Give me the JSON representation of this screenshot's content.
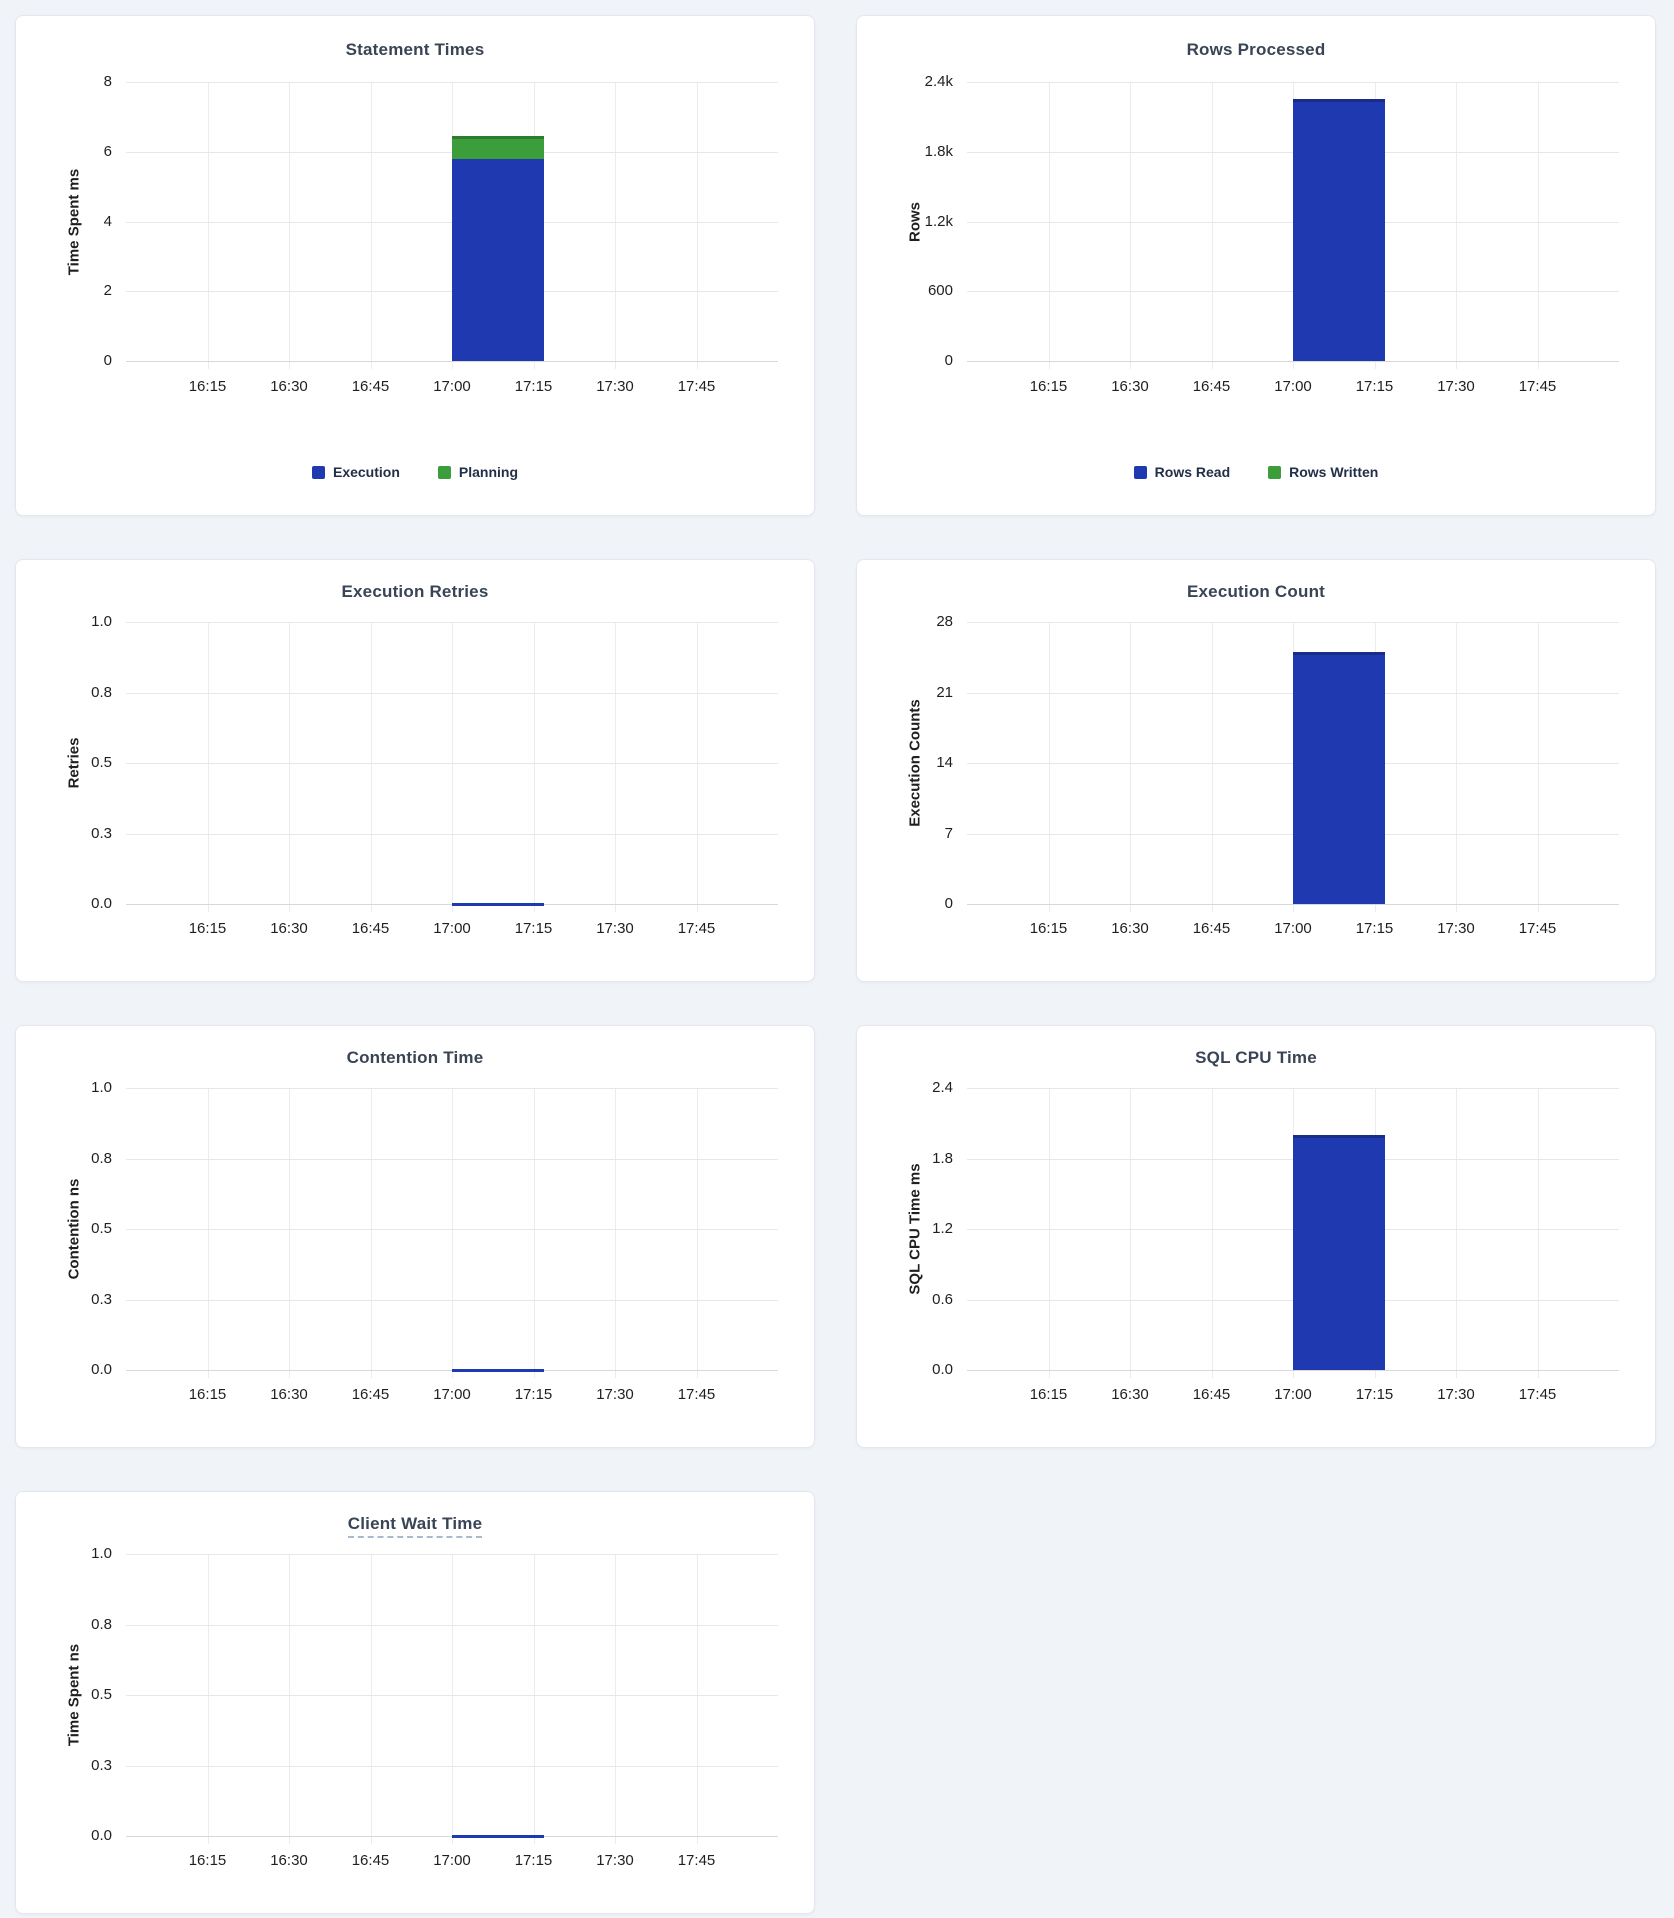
{
  "page": {
    "background_color": "#f0f4f8",
    "card_background_color": "#ffffff",
    "title_color": "#394455",
    "axis_text_color": "#1f1f1f",
    "legend_text_color": "#222f49",
    "gridline_color": "#e8e8e8"
  },
  "x_axis": {
    "range_start": "16:00",
    "range_end": "18:00",
    "tick_labels": [
      "16:15",
      "16:30",
      "16:45",
      "17:00",
      "17:15",
      "17:30",
      "17:45"
    ]
  },
  "chart_data": [
    {
      "id": "statement-times",
      "type": "bar",
      "title": "Statement Times",
      "title_tooltip_underline": false,
      "ylabel": "Time Spent ms",
      "y_ticks": [
        "0",
        "2",
        "4",
        "6",
        "8"
      ],
      "ylim": [
        0,
        8
      ],
      "grid": true,
      "legend_position": "bottom",
      "legend": [
        {
          "label": "Execution",
          "color": "#1f3ab0"
        },
        {
          "label": "Planning",
          "color": "#3b9e3b"
        }
      ],
      "bar": {
        "x_start": "17:00",
        "x_end": "17:17",
        "segments": [
          {
            "name": "Execution",
            "value": 5.8,
            "color": "#1f3ab0"
          },
          {
            "name": "Planning",
            "value": 0.65,
            "color": "#3b9e3b"
          }
        ]
      }
    },
    {
      "id": "rows-processed",
      "type": "bar",
      "title": "Rows Processed",
      "title_tooltip_underline": false,
      "ylabel": "Rows",
      "y_ticks": [
        "0",
        "600",
        "1.2k",
        "1.8k",
        "2.4k"
      ],
      "ylim": [
        0,
        2400
      ],
      "grid": true,
      "legend_position": "bottom",
      "legend": [
        {
          "label": "Rows Read",
          "color": "#1f3ab0"
        },
        {
          "label": "Rows Written",
          "color": "#3b9e3b"
        }
      ],
      "bar": {
        "x_start": "17:00",
        "x_end": "17:17",
        "segments": [
          {
            "name": "Rows Read",
            "value": 2250,
            "color": "#1f3ab0"
          },
          {
            "name": "Rows Written",
            "value": 0,
            "color": "#3b9e3b"
          }
        ]
      }
    },
    {
      "id": "execution-retries",
      "type": "bar",
      "title": "Execution Retries",
      "title_tooltip_underline": false,
      "ylabel": "Retries",
      "y_ticks": [
        "0.0",
        "0.3",
        "0.5",
        "0.8",
        "1.0"
      ],
      "ylim": [
        0,
        1
      ],
      "grid": true,
      "legend_position": "none",
      "legend": [],
      "bar": {
        "x_start": "17:00",
        "x_end": "17:17",
        "segments": [
          {
            "name": "Retries",
            "value": 0,
            "color": "#1f3ab0"
          }
        ]
      }
    },
    {
      "id": "execution-count",
      "type": "bar",
      "title": "Execution Count",
      "title_tooltip_underline": false,
      "ylabel": "Execution Counts",
      "y_ticks": [
        "0",
        "7",
        "14",
        "21",
        "28"
      ],
      "ylim": [
        0,
        28
      ],
      "grid": true,
      "legend_position": "none",
      "legend": [],
      "bar": {
        "x_start": "17:00",
        "x_end": "17:17",
        "segments": [
          {
            "name": "Execution Count",
            "value": 25,
            "color": "#1f3ab0"
          }
        ]
      }
    },
    {
      "id": "contention-time",
      "type": "bar",
      "title": "Contention Time",
      "title_tooltip_underline": false,
      "ylabel": "Contention ns",
      "y_ticks": [
        "0.0",
        "0.3",
        "0.5",
        "0.8",
        "1.0"
      ],
      "ylim": [
        0,
        1
      ],
      "grid": true,
      "legend_position": "none",
      "legend": [],
      "bar": {
        "x_start": "17:00",
        "x_end": "17:17",
        "segments": [
          {
            "name": "Contention",
            "value": 0,
            "color": "#1f3ab0"
          }
        ]
      }
    },
    {
      "id": "sql-cpu-time",
      "type": "bar",
      "title": "SQL CPU Time",
      "title_tooltip_underline": false,
      "ylabel": "SQL CPU Time ms",
      "y_ticks": [
        "0.0",
        "0.6",
        "1.2",
        "1.8",
        "2.4"
      ],
      "ylim": [
        0,
        2.4
      ],
      "grid": true,
      "legend_position": "none",
      "legend": [],
      "bar": {
        "x_start": "17:00",
        "x_end": "17:17",
        "segments": [
          {
            "name": "SQL CPU Time",
            "value": 2.0,
            "color": "#1f3ab0"
          }
        ]
      }
    },
    {
      "id": "client-wait-time",
      "type": "bar",
      "title": "Client Wait Time",
      "title_tooltip_underline": true,
      "ylabel": "Time Spent ns",
      "y_ticks": [
        "0.0",
        "0.3",
        "0.5",
        "0.8",
        "1.0"
      ],
      "ylim": [
        0,
        1
      ],
      "grid": true,
      "legend_position": "none",
      "legend": [],
      "bar": {
        "x_start": "17:00",
        "x_end": "17:17",
        "segments": [
          {
            "name": "Client Wait",
            "value": 0,
            "color": "#1f3ab0"
          }
        ]
      }
    }
  ]
}
